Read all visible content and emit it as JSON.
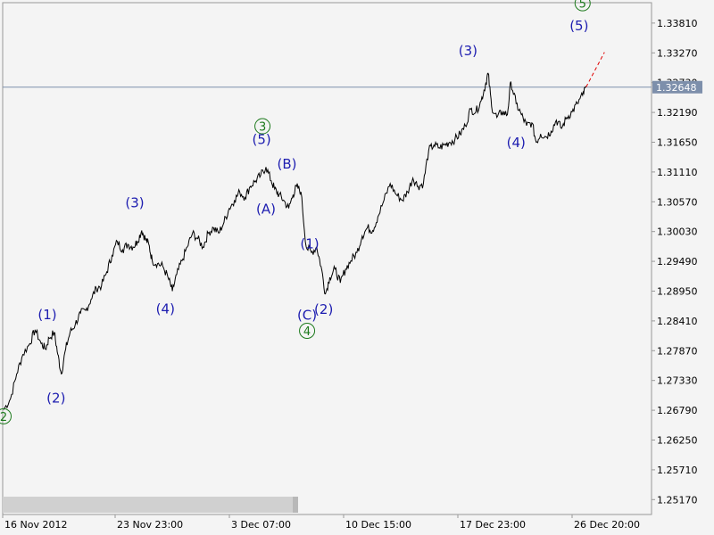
{
  "chart_data": {
    "type": "line",
    "title": "",
    "xlabel": "",
    "ylabel": "",
    "y_ticks": [
      "1.33810",
      "1.33270",
      "1.32730",
      "1.32190",
      "1.31650",
      "1.31110",
      "1.30570",
      "1.30030",
      "1.29490",
      "1.28950",
      "1.28410",
      "1.27870",
      "1.27330",
      "1.26790",
      "1.26250",
      "1.25710",
      "1.25170"
    ],
    "x_ticks": [
      "16 Nov 2012",
      "23 Nov 23:00",
      "3 Dec 07:00",
      "10 Dec 15:00",
      "17 Dec 23:00",
      "26 Dec 20:00"
    ],
    "ylim": [
      1.249,
      1.3418
    ],
    "current_price": "1.32648",
    "current_price_value": 1.32648,
    "series": [
      {
        "values": [
          [
            0.0,
            1.268
          ],
          [
            0.8,
            1.27
          ],
          [
            1.5,
            1.2745
          ],
          [
            2.2,
            1.278
          ],
          [
            3.0,
            1.28
          ],
          [
            3.6,
            1.2825
          ],
          [
            4.3,
            1.28
          ],
          [
            4.8,
            1.279
          ],
          [
            5.2,
            1.281
          ],
          [
            5.8,
            1.282
          ],
          [
            6.2,
            1.278
          ],
          [
            6.6,
            1.2745
          ],
          [
            7.1,
            1.279
          ],
          [
            7.6,
            1.282
          ],
          [
            8.2,
            1.2835
          ],
          [
            8.8,
            1.2855
          ],
          [
            9.4,
            1.286
          ],
          [
            10.0,
            1.288
          ],
          [
            10.6,
            1.29
          ],
          [
            11.2,
            1.2905
          ],
          [
            11.8,
            1.293
          ],
          [
            12.4,
            1.296
          ],
          [
            13.0,
            1.2985
          ],
          [
            13.6,
            1.297
          ],
          [
            14.2,
            1.298
          ],
          [
            14.8,
            1.2975
          ],
          [
            15.3,
            1.2985
          ],
          [
            15.8,
            1.3005
          ],
          [
            16.2,
            1.299
          ],
          [
            16.6,
            1.298
          ],
          [
            17.0,
            1.295
          ],
          [
            17.6,
            1.2945
          ],
          [
            18.2,
            1.294
          ],
          [
            18.8,
            1.292
          ],
          [
            19.3,
            1.2895
          ],
          [
            19.8,
            1.2925
          ],
          [
            20.4,
            1.295
          ],
          [
            21.0,
            1.2975
          ],
          [
            21.6,
            1.3
          ],
          [
            22.2,
            1.299
          ],
          [
            22.8,
            1.2975
          ],
          [
            23.4,
            1.3
          ],
          [
            24.0,
            1.301
          ],
          [
            24.6,
            1.3
          ],
          [
            25.2,
            1.302
          ],
          [
            25.8,
            1.3045
          ],
          [
            26.4,
            1.306
          ],
          [
            27.0,
            1.3075
          ],
          [
            27.6,
            1.3065
          ],
          [
            28.2,
            1.3085
          ],
          [
            28.8,
            1.3095
          ],
          [
            29.4,
            1.3105
          ],
          [
            30.0,
            1.312
          ],
          [
            30.6,
            1.3095
          ],
          [
            31.0,
            1.308
          ],
          [
            31.5,
            1.307
          ],
          [
            32.0,
            1.306
          ],
          [
            32.6,
            1.3045
          ],
          [
            33.1,
            1.307
          ],
          [
            33.5,
            1.3085
          ],
          [
            34.0,
            1.3075
          ],
          [
            34.6,
            1.2975
          ],
          [
            35.2,
            1.2965
          ],
          [
            35.8,
            1.2975
          ],
          [
            36.3,
            1.294
          ],
          [
            36.8,
            1.289
          ],
          [
            37.3,
            1.292
          ],
          [
            37.9,
            1.2935
          ],
          [
            38.5,
            1.291
          ],
          [
            39.1,
            1.2935
          ],
          [
            39.7,
            1.295
          ],
          [
            40.4,
            1.2965
          ],
          [
            41.0,
            1.2995
          ],
          [
            41.6,
            1.301
          ],
          [
            42.2,
            1.3005
          ],
          [
            42.8,
            1.303
          ],
          [
            43.5,
            1.306
          ],
          [
            44.2,
            1.309
          ],
          [
            44.9,
            1.307
          ],
          [
            45.6,
            1.306
          ],
          [
            46.2,
            1.3075
          ],
          [
            46.8,
            1.31
          ],
          [
            47.4,
            1.3085
          ],
          [
            48.0,
            1.309
          ],
          [
            48.6,
            1.315
          ],
          [
            49.2,
            1.316
          ],
          [
            49.8,
            1.3155
          ],
          [
            50.4,
            1.316
          ],
          [
            51.0,
            1.3165
          ],
          [
            51.6,
            1.317
          ],
          [
            52.2,
            1.318
          ],
          [
            52.8,
            1.3195
          ],
          [
            53.4,
            1.3225
          ],
          [
            54.0,
            1.322
          ],
          [
            54.6,
            1.324
          ],
          [
            55.1,
            1.327
          ],
          [
            55.4,
            1.329
          ],
          [
            55.8,
            1.323
          ],
          [
            56.4,
            1.321
          ],
          [
            57.0,
            1.322
          ],
          [
            57.6,
            1.3215
          ],
          [
            58.0,
            1.3275
          ],
          [
            58.6,
            1.3235
          ],
          [
            59.2,
            1.3215
          ],
          [
            59.8,
            1.3195
          ],
          [
            60.4,
            1.32
          ],
          [
            60.9,
            1.3165
          ],
          [
            61.4,
            1.318
          ],
          [
            62.0,
            1.3175
          ],
          [
            62.6,
            1.3185
          ],
          [
            63.2,
            1.3205
          ],
          [
            63.8,
            1.319
          ],
          [
            64.4,
            1.321
          ],
          [
            65.0,
            1.322
          ],
          [
            65.6,
            1.3235
          ],
          [
            66.2,
            1.325
          ],
          [
            66.6,
            1.3265
          ]
        ]
      }
    ],
    "projection": [
      [
        66.6,
        1.3265
      ],
      [
        68.7,
        1.3328
      ]
    ],
    "wave_labels": [
      {
        "text": "(1)",
        "x": 5.0,
        "y": 1.2852,
        "style": "paren"
      },
      {
        "text": "(2)",
        "x": 6.0,
        "y": 1.2701,
        "style": "paren"
      },
      {
        "text": "(3)",
        "x": 15.0,
        "y": 1.3055,
        "style": "paren"
      },
      {
        "text": "(4)",
        "x": 18.5,
        "y": 1.2863,
        "style": "paren"
      },
      {
        "text": "(5)",
        "x": 29.5,
        "y": 1.317,
        "style": "paren"
      },
      {
        "text": "(A)",
        "x": 30.0,
        "y": 1.3044,
        "style": "paren"
      },
      {
        "text": "(B)",
        "x": 32.4,
        "y": 1.3125,
        "style": "paren"
      },
      {
        "text": "(1)",
        "x": 35.0,
        "y": 1.2981,
        "style": "paren"
      },
      {
        "text": "(C)",
        "x": 34.7,
        "y": 1.2851,
        "style": "paren"
      },
      {
        "text": "(2)",
        "x": 36.6,
        "y": 1.2862,
        "style": "paren"
      },
      {
        "text": "(3)",
        "x": 53.1,
        "y": 1.3331,
        "style": "paren"
      },
      {
        "text": "(4)",
        "x": 58.6,
        "y": 1.3164,
        "style": "paren"
      },
      {
        "text": "(5)",
        "x": 65.8,
        "y": 1.3376,
        "style": "paren"
      },
      {
        "text": "2",
        "x": 0.0,
        "y": 1.2668,
        "style": "circle"
      },
      {
        "text": "3",
        "x": 29.6,
        "y": 1.3194,
        "style": "circle"
      },
      {
        "text": "4",
        "x": 34.7,
        "y": 1.2823,
        "style": "circle"
      },
      {
        "text": "5",
        "x": 66.2,
        "y": 1.3417,
        "style": "circle"
      }
    ],
    "grid": false,
    "legend": "none"
  }
}
